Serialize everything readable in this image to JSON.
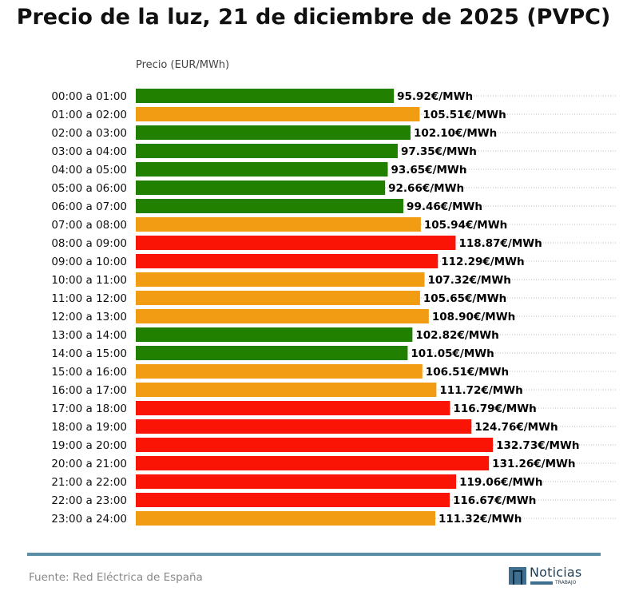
{
  "chart_data": {
    "type": "bar",
    "orientation": "horizontal",
    "title": "Precio de la luz, 21 de diciembre de 2025 (PVPC)",
    "xlabel": "Precio (EUR/MWh)",
    "ylabel": "",
    "value_suffix": "€/MWh",
    "grid": "horizontal dotted",
    "categories": [
      "00:00 a 01:00",
      "01:00 a 02:00",
      "02:00 a 03:00",
      "03:00 a 04:00",
      "04:00 a 05:00",
      "05:00 a 06:00",
      "06:00 a 07:00",
      "07:00 a 08:00",
      "08:00 a 09:00",
      "09:00 a 10:00",
      "10:00 a 11:00",
      "11:00 a 12:00",
      "12:00 a 13:00",
      "13:00 a 14:00",
      "14:00 a 15:00",
      "15:00 a 16:00",
      "16:00 a 17:00",
      "17:00 a 18:00",
      "18:00 a 19:00",
      "19:00 a 20:00",
      "20:00 a 21:00",
      "21:00 a 22:00",
      "22:00 a 23:00",
      "23:00 a 24:00"
    ],
    "values": [
      95.92,
      105.51,
      102.1,
      97.35,
      93.65,
      92.66,
      99.46,
      105.94,
      118.87,
      112.29,
      107.32,
      105.65,
      108.9,
      102.82,
      101.05,
      106.51,
      111.72,
      116.79,
      124.76,
      132.73,
      131.26,
      119.06,
      116.67,
      111.32
    ],
    "levels": [
      "low",
      "mid",
      "low",
      "low",
      "low",
      "low",
      "low",
      "mid",
      "high",
      "high",
      "mid",
      "mid",
      "mid",
      "low",
      "low",
      "mid",
      "mid",
      "high",
      "high",
      "high",
      "high",
      "high",
      "high",
      "mid"
    ],
    "colors": {
      "low": "#218000",
      "mid": "#f29c13",
      "high": "#f91405"
    },
    "xlim": [
      0,
      179
    ]
  },
  "footer": {
    "source": "Fuente: Red Eléctrica de España",
    "logo_text": "Noticias",
    "logo_sub": "TRABAJO",
    "rule_color": "#5b8ea6"
  }
}
